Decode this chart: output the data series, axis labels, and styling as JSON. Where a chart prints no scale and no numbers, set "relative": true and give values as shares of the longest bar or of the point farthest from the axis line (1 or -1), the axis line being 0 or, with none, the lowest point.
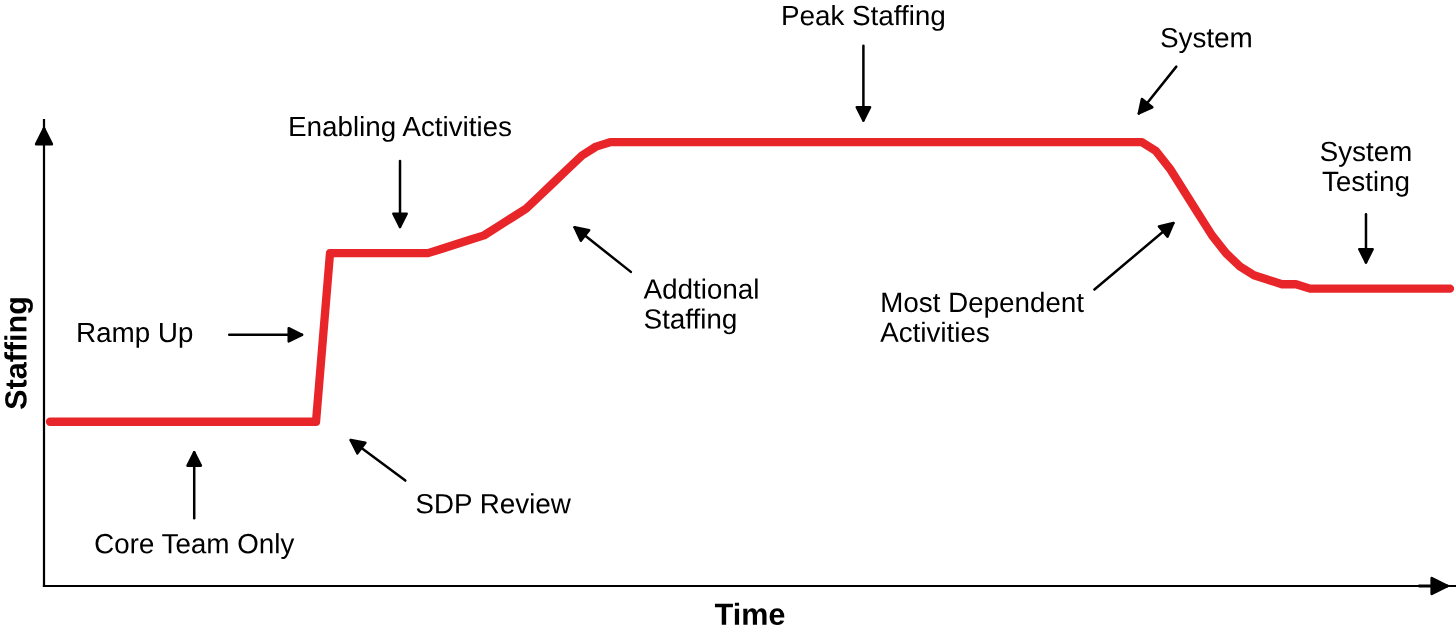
{
  "chart_data": {
    "type": "line",
    "relative": true,
    "xlabel": "Time",
    "ylabel": "Staffing",
    "categories": [
      null,
      null,
      null,
      null,
      null,
      null,
      null,
      null,
      null,
      null,
      null,
      null,
      null,
      null,
      null,
      null,
      null,
      null,
      null,
      null,
      null,
      null,
      null,
      null,
      null,
      null,
      null,
      null,
      null,
      null,
      null,
      null,
      null,
      null,
      null,
      null,
      null,
      null,
      null,
      null,
      null,
      null,
      null,
      null,
      null,
      null,
      null,
      null,
      null,
      null,
      null,
      null,
      null,
      null,
      null,
      null,
      null,
      null,
      null,
      null,
      null,
      null,
      null,
      null,
      null,
      null,
      null,
      null,
      null,
      null,
      null,
      null,
      null,
      null,
      null,
      null,
      null,
      null,
      null,
      null,
      null,
      null,
      null,
      null,
      null,
      null,
      null,
      null,
      null,
      null,
      null,
      null,
      null,
      null,
      null,
      null,
      null,
      null,
      null,
      null,
      null
    ],
    "series": [
      {
        "color": "#e8262a",
        "values": [
          0.37,
          0.37,
          0.37,
          0.37,
          0.37,
          0.37,
          0.37,
          0.37,
          0.37,
          0.37,
          0.37,
          0.37,
          0.37,
          0.37,
          0.37,
          0.37,
          0.37,
          0.37,
          0.37,
          0.37,
          0.75,
          0.75,
          0.75,
          0.75,
          0.75,
          0.75,
          0.75,
          0.75,
          0.76,
          0.77,
          0.78,
          0.79,
          0.81,
          0.83,
          0.85,
          0.88,
          0.91,
          0.94,
          0.97,
          0.99,
          1.0,
          1.0,
          1.0,
          1.0,
          1.0,
          1.0,
          1.0,
          1.0,
          1.0,
          1.0,
          1.0,
          1.0,
          1.0,
          1.0,
          1.0,
          1.0,
          1.0,
          1.0,
          1.0,
          1.0,
          1.0,
          1.0,
          1.0,
          1.0,
          1.0,
          1.0,
          1.0,
          1.0,
          1.0,
          1.0,
          1.0,
          1.0,
          1.0,
          1.0,
          1.0,
          1.0,
          1.0,
          1.0,
          1.0,
          0.98,
          0.94,
          0.89,
          0.84,
          0.79,
          0.75,
          0.72,
          0.7,
          0.69,
          0.68,
          0.68,
          0.67,
          0.67,
          0.67,
          0.67,
          0.67,
          0.67,
          0.67,
          0.67,
          0.67,
          0.67,
          0.67
        ]
      }
    ],
    "annotations": [
      "Peak Staffing",
      "System",
      "Enabling Activities",
      "Addtional\nStaffing",
      "Ramp Up",
      "Most Dependent\nActivities",
      "System\nTesting",
      "SDP Review",
      "Core Team Only"
    ],
    "legend": false,
    "marker": "none",
    "line_style": "solid"
  }
}
